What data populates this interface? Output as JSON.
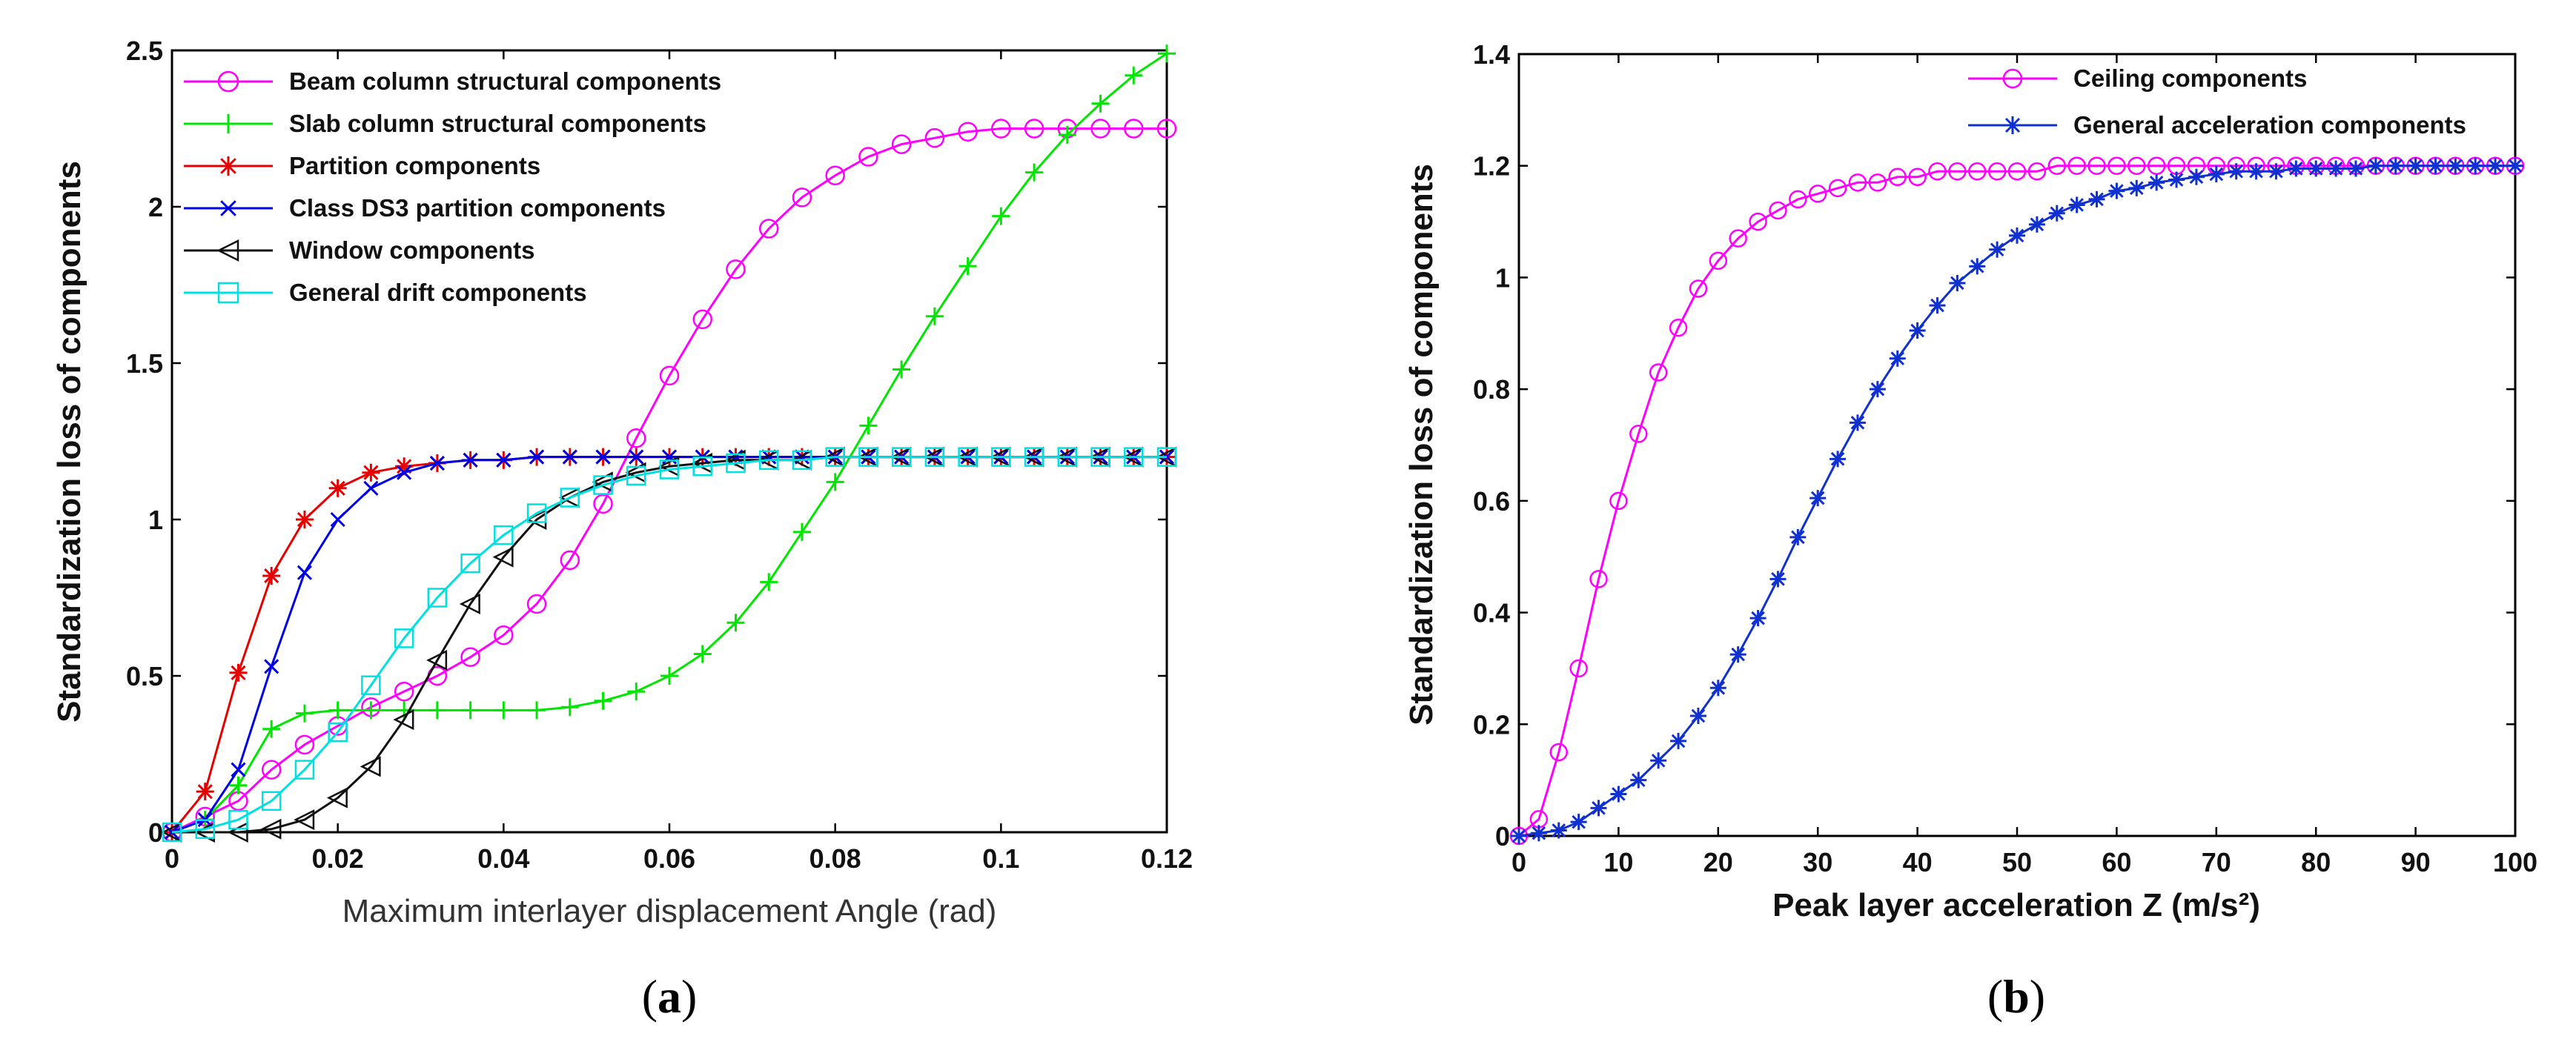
{
  "panel_labels": {
    "a": "a",
    "b": "b"
  },
  "chart_data": [
    {
      "type": "line",
      "panel": "(a)",
      "title": "",
      "xlabel": "Maximum interlayer displacement Angle (rad)",
      "ylabel": "Standardization loss of components",
      "xlim": [
        0,
        0.12
      ],
      "ylim": [
        0,
        2.5
      ],
      "xticks": [
        "0",
        "0.02",
        "0.04",
        "0.06",
        "0.08",
        "0.1",
        "0.12"
      ],
      "yticks": [
        "0",
        "0.5",
        "1",
        "1.5",
        "2",
        "2.5"
      ],
      "legend_position": "top-left",
      "series": [
        {
          "name": "Beam column structural components",
          "color": "#ff00ff",
          "marker": "circle",
          "x": [
            0,
            0.004,
            0.008,
            0.012,
            0.016,
            0.02,
            0.024,
            0.028,
            0.032,
            0.036,
            0.04,
            0.044,
            0.048,
            0.052,
            0.056,
            0.06,
            0.064,
            0.068,
            0.072,
            0.076,
            0.08,
            0.084,
            0.088,
            0.092,
            0.096,
            0.1,
            0.104,
            0.108,
            0.112,
            0.116,
            0.12
          ],
          "y": [
            0,
            0.05,
            0.1,
            0.2,
            0.28,
            0.34,
            0.4,
            0.45,
            0.5,
            0.56,
            0.63,
            0.73,
            0.87,
            1.05,
            1.26,
            1.46,
            1.64,
            1.8,
            1.93,
            2.03,
            2.1,
            2.16,
            2.2,
            2.22,
            2.24,
            2.25,
            2.25,
            2.25,
            2.25,
            2.25,
            2.25
          ]
        },
        {
          "name": "Slab column structural components",
          "color": "#00e600",
          "marker": "plus",
          "x": [
            0,
            0.004,
            0.008,
            0.012,
            0.016,
            0.02,
            0.024,
            0.028,
            0.032,
            0.036,
            0.04,
            0.044,
            0.048,
            0.052,
            0.056,
            0.06,
            0.064,
            0.068,
            0.072,
            0.076,
            0.08,
            0.084,
            0.088,
            0.092,
            0.096,
            0.1,
            0.104,
            0.108,
            0.112,
            0.116,
            0.12
          ],
          "y": [
            0,
            0.04,
            0.15,
            0.33,
            0.38,
            0.39,
            0.39,
            0.39,
            0.39,
            0.39,
            0.39,
            0.39,
            0.4,
            0.42,
            0.45,
            0.5,
            0.57,
            0.67,
            0.8,
            0.96,
            1.12,
            1.3,
            1.48,
            1.65,
            1.81,
            1.97,
            2.11,
            2.23,
            2.33,
            2.42,
            2.49
          ]
        },
        {
          "name": "Partition components",
          "color": "#e60000",
          "marker": "star",
          "x": [
            0,
            0.004,
            0.008,
            0.012,
            0.016,
            0.02,
            0.024,
            0.028,
            0.032,
            0.036,
            0.04,
            0.044,
            0.048,
            0.052,
            0.056,
            0.06,
            0.064,
            0.068,
            0.072,
            0.076,
            0.08,
            0.084,
            0.088,
            0.092,
            0.096,
            0.1,
            0.104,
            0.108,
            0.112,
            0.116,
            0.12
          ],
          "y": [
            0,
            0.13,
            0.51,
            0.82,
            1.0,
            1.1,
            1.15,
            1.17,
            1.18,
            1.19,
            1.19,
            1.2,
            1.2,
            1.2,
            1.2,
            1.2,
            1.2,
            1.2,
            1.2,
            1.2,
            1.2,
            1.2,
            1.2,
            1.2,
            1.2,
            1.2,
            1.2,
            1.2,
            1.2,
            1.2,
            1.2
          ]
        },
        {
          "name": "Class DS3 partition components",
          "color": "#0000e6",
          "marker": "x",
          "x": [
            0,
            0.004,
            0.008,
            0.012,
            0.016,
            0.02,
            0.024,
            0.028,
            0.032,
            0.036,
            0.04,
            0.044,
            0.048,
            0.052,
            0.056,
            0.06,
            0.064,
            0.068,
            0.072,
            0.076,
            0.08,
            0.084,
            0.088,
            0.092,
            0.096,
            0.1,
            0.104,
            0.108,
            0.112,
            0.116,
            0.12
          ],
          "y": [
            0,
            0.04,
            0.2,
            0.53,
            0.83,
            1.0,
            1.1,
            1.15,
            1.18,
            1.19,
            1.19,
            1.2,
            1.2,
            1.2,
            1.2,
            1.2,
            1.2,
            1.2,
            1.2,
            1.2,
            1.2,
            1.2,
            1.2,
            1.2,
            1.2,
            1.2,
            1.2,
            1.2,
            1.2,
            1.2,
            1.2
          ]
        },
        {
          "name": "Window components",
          "color": "#111111",
          "marker": "triangle-left",
          "x": [
            0,
            0.004,
            0.008,
            0.012,
            0.016,
            0.02,
            0.024,
            0.028,
            0.032,
            0.036,
            0.04,
            0.044,
            0.048,
            0.052,
            0.056,
            0.06,
            0.064,
            0.068,
            0.072,
            0.076,
            0.08,
            0.084,
            0.088,
            0.092,
            0.096,
            0.1,
            0.104,
            0.108,
            0.112,
            0.116,
            0.12
          ],
          "y": [
            0,
            0,
            0,
            0.01,
            0.04,
            0.11,
            0.21,
            0.36,
            0.55,
            0.73,
            0.88,
            1.0,
            1.07,
            1.12,
            1.15,
            1.17,
            1.18,
            1.19,
            1.19,
            1.19,
            1.2,
            1.2,
            1.2,
            1.2,
            1.2,
            1.2,
            1.2,
            1.2,
            1.2,
            1.2,
            1.2
          ]
        },
        {
          "name": "General drift components",
          "color": "#00e0e0",
          "marker": "square",
          "x": [
            0,
            0.004,
            0.008,
            0.012,
            0.016,
            0.02,
            0.024,
            0.028,
            0.032,
            0.036,
            0.04,
            0.044,
            0.048,
            0.052,
            0.056,
            0.06,
            0.064,
            0.068,
            0.072,
            0.076,
            0.08,
            0.084,
            0.088,
            0.092,
            0.096,
            0.1,
            0.104,
            0.108,
            0.112,
            0.116,
            0.12
          ],
          "y": [
            0,
            0.01,
            0.04,
            0.1,
            0.2,
            0.32,
            0.47,
            0.62,
            0.75,
            0.86,
            0.95,
            1.02,
            1.07,
            1.11,
            1.14,
            1.16,
            1.17,
            1.18,
            1.19,
            1.19,
            1.2,
            1.2,
            1.2,
            1.2,
            1.2,
            1.2,
            1.2,
            1.2,
            1.2,
            1.2,
            1.2
          ]
        }
      ]
    },
    {
      "type": "line",
      "panel": "(b)",
      "title": "",
      "xlabel": "Peak layer acceleration Z (m/s²)",
      "ylabel": "Standardization loss of components",
      "xlim": [
        0,
        100
      ],
      "ylim": [
        0,
        1.4
      ],
      "xticks": [
        "0",
        "10",
        "20",
        "30",
        "40",
        "50",
        "60",
        "70",
        "80",
        "90",
        "100"
      ],
      "yticks": [
        "0",
        "0.2",
        "0.4",
        "0.6",
        "0.8",
        "1",
        "1.2",
        "1.4"
      ],
      "legend_position": "top-right",
      "series": [
        {
          "name": "Ceiling components",
          "color": "#ff00ff",
          "marker": "circle",
          "x": [
            0,
            2,
            4,
            6,
            8,
            10,
            12,
            14,
            16,
            18,
            20,
            22,
            24,
            26,
            28,
            30,
            32,
            34,
            36,
            38,
            40,
            42,
            44,
            46,
            48,
            50,
            52,
            54,
            56,
            58,
            60,
            62,
            64,
            66,
            68,
            70,
            72,
            74,
            76,
            78,
            80,
            82,
            84,
            86,
            88,
            90,
            92,
            94,
            96,
            98,
            100
          ],
          "y": [
            0,
            0.03,
            0.15,
            0.3,
            0.46,
            0.6,
            0.72,
            0.83,
            0.91,
            0.98,
            1.03,
            1.07,
            1.1,
            1.12,
            1.14,
            1.15,
            1.16,
            1.17,
            1.17,
            1.18,
            1.18,
            1.19,
            1.19,
            1.19,
            1.19,
            1.19,
            1.19,
            1.2,
            1.2,
            1.2,
            1.2,
            1.2,
            1.2,
            1.2,
            1.2,
            1.2,
            1.2,
            1.2,
            1.2,
            1.2,
            1.2,
            1.2,
            1.2,
            1.2,
            1.2,
            1.2,
            1.2,
            1.2,
            1.2,
            1.2,
            1.2
          ]
        },
        {
          "name": "General acceleration components",
          "color": "#1030d0",
          "marker": "star",
          "x": [
            0,
            2,
            4,
            6,
            8,
            10,
            12,
            14,
            16,
            18,
            20,
            22,
            24,
            26,
            28,
            30,
            32,
            34,
            36,
            38,
            40,
            42,
            44,
            46,
            48,
            50,
            52,
            54,
            56,
            58,
            60,
            62,
            64,
            66,
            68,
            70,
            72,
            74,
            76,
            78,
            80,
            82,
            84,
            86,
            88,
            90,
            92,
            94,
            96,
            98,
            100
          ],
          "y": [
            0,
            0.005,
            0.01,
            0.025,
            0.05,
            0.075,
            0.1,
            0.135,
            0.17,
            0.215,
            0.265,
            0.325,
            0.39,
            0.46,
            0.535,
            0.605,
            0.675,
            0.74,
            0.8,
            0.855,
            0.905,
            0.95,
            0.99,
            1.02,
            1.05,
            1.075,
            1.095,
            1.115,
            1.13,
            1.14,
            1.155,
            1.16,
            1.17,
            1.175,
            1.18,
            1.185,
            1.19,
            1.19,
            1.19,
            1.195,
            1.195,
            1.195,
            1.195,
            1.2,
            1.2,
            1.2,
            1.2,
            1.2,
            1.2,
            1.2,
            1.2
          ]
        }
      ]
    }
  ]
}
